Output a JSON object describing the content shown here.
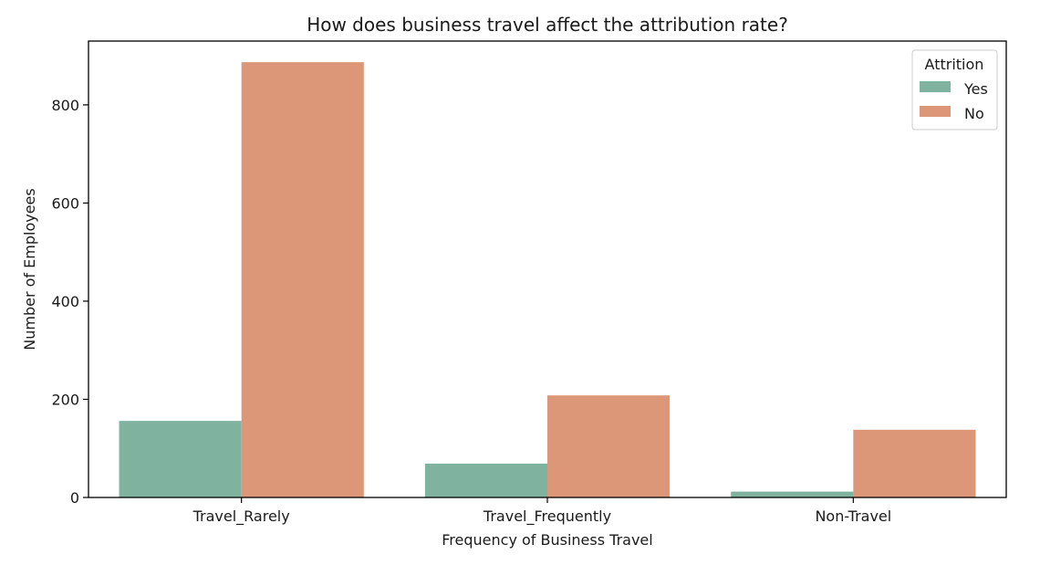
{
  "chart_data": {
    "type": "bar",
    "title": "How does business travel affect the attribution rate?",
    "xlabel": "Frequency of Business Travel",
    "ylabel": "Number of Employees",
    "categories": [
      "Travel_Rarely",
      "Travel_Frequently",
      "Non-Travel"
    ],
    "series": [
      {
        "name": "Yes",
        "color": "#7fb3a0",
        "values": [
          156,
          69,
          12
        ]
      },
      {
        "name": "No",
        "color": "#dc9779",
        "values": [
          887,
          208,
          138
        ]
      }
    ],
    "ylim": [
      0,
      930
    ],
    "yticks": [
      0,
      200,
      400,
      600,
      800
    ],
    "grid": false,
    "legend": {
      "title": "Attrition",
      "position": "top-right"
    }
  }
}
